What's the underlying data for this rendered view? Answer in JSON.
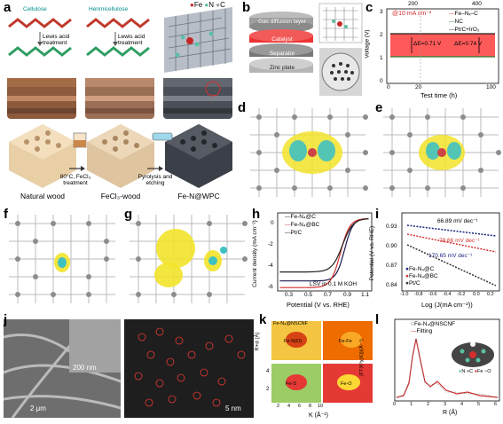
{
  "panel_labels": [
    "a",
    "b",
    "c",
    "d",
    "e",
    "f",
    "g",
    "h",
    "i",
    "j",
    "k",
    "l"
  ],
  "panel_a": {
    "cellulose": "Cellulose",
    "hemicellulose": "Henmicellulose",
    "lewis_acid": "Lewis acid treatment",
    "legend_fe": "Fe",
    "legend_n": "N",
    "legend_c": "C",
    "cond1": "80°C, FeCl₃ treatment",
    "cond2": "Pyrolysis and etching",
    "cap1": "Natural wood",
    "cap2": "FeCl₃-wood",
    "cap3": "Fe-N@WPC",
    "colors": {
      "cellulose_chain": "#c0392b",
      "hemi_chain": "#2e9e62",
      "fe": "#c62828",
      "n": "#5dbfa5",
      "c": "#9e9e9e"
    }
  },
  "panel_b": {
    "layers": [
      "Gas diffusion layer",
      "Catalyst",
      "Separator",
      "Zinc plate"
    ]
  },
  "panel_c": {
    "type": "line",
    "annotation": "@10 mA cm⁻²",
    "ylabel": "Voltage (V)",
    "xlabel": "Test time (h)",
    "top_ticks": [
      "200",
      "400"
    ],
    "bottom_ticks": [
      "0",
      "20",
      "100"
    ],
    "y_ticks": [
      "0",
      "1",
      "2",
      "3"
    ],
    "legend": [
      "Fe–Nₓ–C",
      "NC",
      "Pt/C+IrO₂"
    ],
    "delta1": "ΔE=0.71 V",
    "delta2": "ΔE=0.74 V",
    "colors": {
      "fenc": "#e53935",
      "nc": "#2e7d32",
      "ptc": "#424242",
      "fill": "#ff5a5a"
    }
  },
  "panel_h": {
    "type": "line",
    "series": [
      {
        "name": "Fe-N₄@C",
        "color": "#1a1a4d"
      },
      {
        "name": "Fe-N₄@BC",
        "color": "#d32f2f"
      },
      {
        "name": "Pt/C",
        "color": "#222222"
      }
    ],
    "ylabel": "Current density (mA cm⁻²)",
    "xlabel": "Potential (V vs. RHE)",
    "annotation": "LSV in 0.1 M KOH",
    "x_ticks": [
      "0.3",
      "0.5",
      "0.7",
      "0.9",
      "1.1"
    ],
    "y_ticks": [
      "0",
      "-2",
      "-4",
      "-6"
    ],
    "xlim": [
      0.2,
      1.1
    ],
    "ylim": [
      -6.5,
      0.5
    ]
  },
  "panel_i": {
    "type": "scatter",
    "ylabel": "Potential (V vs. RHE)",
    "xlabel": "Log (J(mA cm⁻²))",
    "x_ticks": [
      "-1.0",
      "-0.8",
      "-0.6",
      "-0.4",
      "-0.2",
      "0.0",
      "0.2"
    ],
    "y_ticks": [
      "0.93",
      "0.90",
      "0.87",
      "0.84"
    ],
    "slopes": [
      "66.89 mV dec⁻¹",
      "78.66 mV dec⁻¹",
      "170.65 mV dec⁻¹"
    ],
    "legend": [
      "Fe-N₄@C",
      "Fe-N₄@BC",
      "Pt/C"
    ],
    "colors": [
      "#1a237e",
      "#d32f2f",
      "#333333"
    ]
  },
  "panel_j": {
    "scale1": "200 nm",
    "scale2": "2 μm",
    "scale3": "5 nm"
  },
  "panel_k": {
    "titles": [
      "Fe-N₄@NSCNF",
      "",
      "",
      ""
    ],
    "labels": [
      "Fe-N(O)",
      "Fe-Fe",
      "Fe-S",
      "Fe-O"
    ],
    "ylabel": "R+α (Å)",
    "xlabel": "K (Å⁻¹)",
    "x_ticks": [
      "2",
      "4",
      "6",
      "8",
      "10"
    ],
    "y_ticks": [
      "4",
      "2"
    ]
  },
  "panel_l": {
    "legend": [
      "Fe-N₄@NSCNF",
      "Fitting"
    ],
    "ylabel": "|FT(K³χ(K))|(Å⁻⁴)",
    "xlabel": "R (Å)",
    "x_ticks": [
      "0",
      "1",
      "2",
      "3",
      "4",
      "5",
      "6"
    ],
    "atom_legend": [
      "N",
      "C",
      "Fe",
      "O"
    ]
  }
}
